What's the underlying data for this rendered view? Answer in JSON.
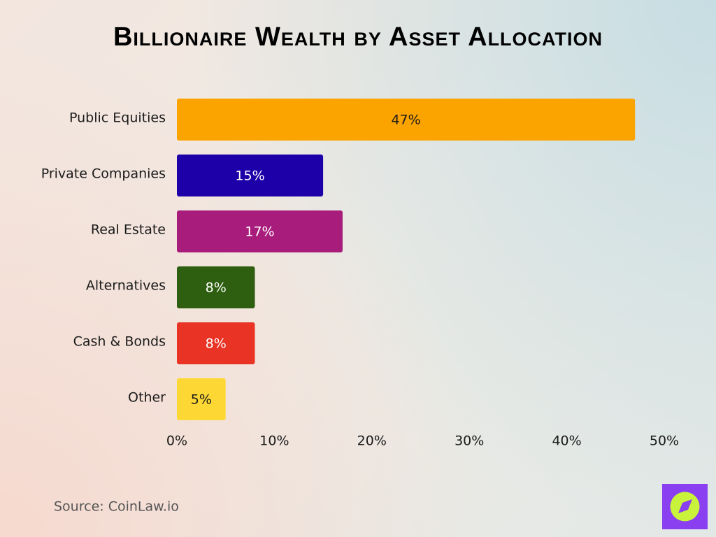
{
  "chart_data": {
    "type": "bar",
    "horizontal": true,
    "title": "Billionaire Wealth by Asset Allocation",
    "categories": [
      "Public Equities",
      "Private Companies",
      "Real Estate",
      "Alternatives",
      "Cash & Bonds",
      "Other"
    ],
    "values": [
      47,
      15,
      17,
      8,
      8,
      5
    ],
    "value_labels": [
      "47%",
      "15%",
      "17%",
      "8%",
      "8%",
      "5%"
    ],
    "colors": [
      "#fba400",
      "#1d00a8",
      "#a81c7c",
      "#2e5e0f",
      "#e83325",
      "#fdd835"
    ],
    "xlim": [
      0,
      50
    ],
    "xticks": [
      {
        "value": 0,
        "label": "0%"
      },
      {
        "value": 10,
        "label": "10%"
      },
      {
        "value": 20,
        "label": "20%"
      },
      {
        "value": 30,
        "label": "30%"
      },
      {
        "value": 40,
        "label": "40%"
      },
      {
        "value": 50,
        "label": "50%"
      }
    ],
    "grid": false,
    "source": "Source: CoinLaw.io"
  }
}
